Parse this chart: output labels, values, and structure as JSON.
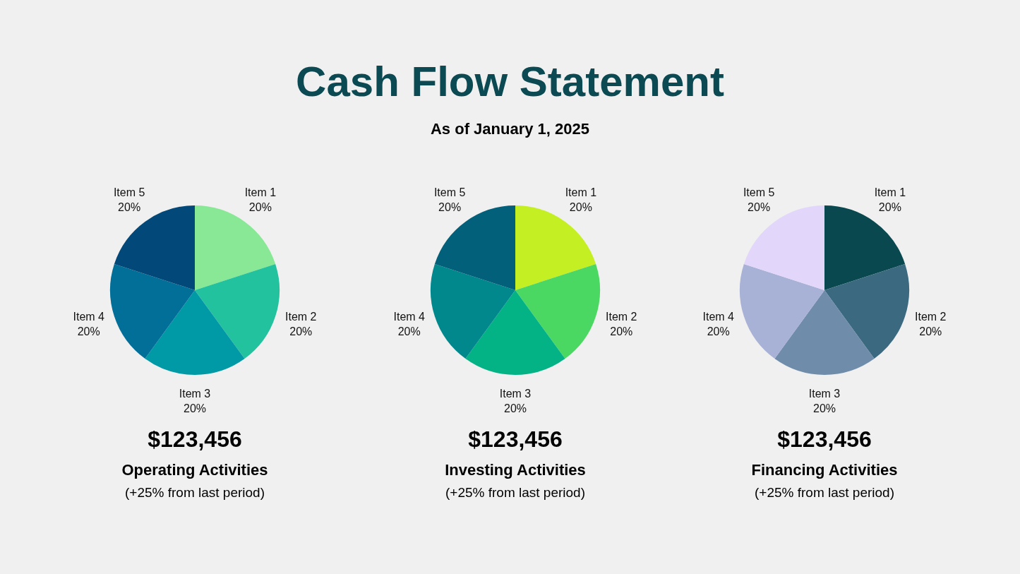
{
  "chart_data": [
    {
      "type": "other",
      "title": "Cash Flow Statement",
      "subtitle": "As of January 1, 2025"
    },
    {
      "type": "pie",
      "title": "Operating Activities",
      "categories": [
        "Item 1",
        "Item 2",
        "Item 3",
        "Item 4",
        "Item 5"
      ],
      "values": [
        20,
        20,
        20,
        20,
        20
      ],
      "value_labels": [
        "20%",
        "20%",
        "20%",
        "20%",
        "20%"
      ],
      "colors": [
        "#88e896",
        "#22c29f",
        "#0099a6",
        "#026f99",
        "#024878"
      ],
      "annotations": [
        "$123,456",
        "(+25% from last period)"
      ]
    },
    {
      "type": "pie",
      "title": "Investing Activities",
      "categories": [
        "Item 1",
        "Item 2",
        "Item 3",
        "Item 4",
        "Item 5"
      ],
      "values": [
        20,
        20,
        20,
        20,
        20
      ],
      "value_labels": [
        "20%",
        "20%",
        "20%",
        "20%",
        "20%"
      ],
      "colors": [
        "#c4f023",
        "#4bd862",
        "#03b386",
        "#01888c",
        "#03607a"
      ],
      "annotations": [
        "$123,456",
        "(+25% from last period)"
      ]
    },
    {
      "type": "pie",
      "title": "Financing Activities",
      "categories": [
        "Item 1",
        "Item 2",
        "Item 3",
        "Item 4",
        "Item 5"
      ],
      "values": [
        20,
        20,
        20,
        20,
        20
      ],
      "value_labels": [
        "20%",
        "20%",
        "20%",
        "20%",
        "20%"
      ],
      "colors": [
        "#0a4850",
        "#3b6a80",
        "#6f8caa",
        "#a8b1d6",
        "#e2d7fa"
      ],
      "annotations": [
        "$123,456",
        "(+25% from last period)"
      ]
    }
  ]
}
